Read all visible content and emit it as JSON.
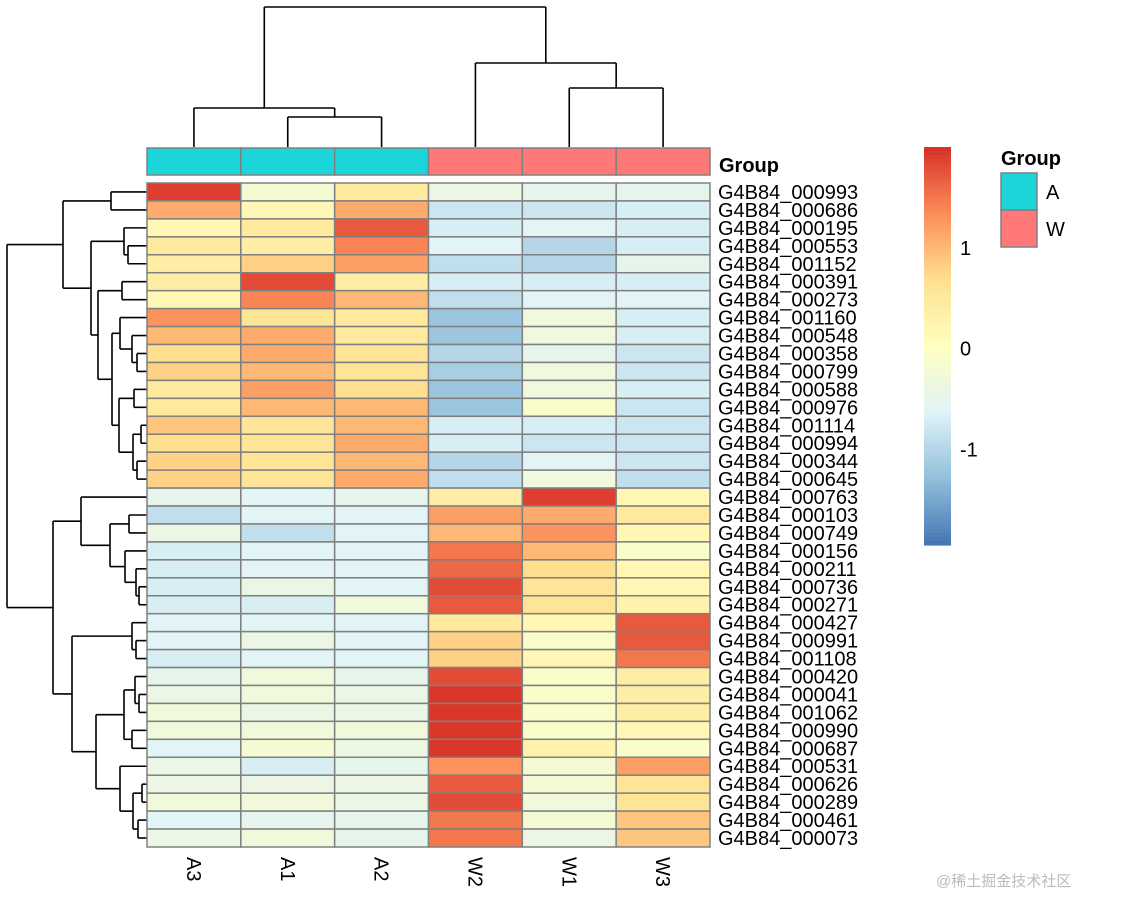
{
  "chart_data": {
    "type": "heatmap",
    "columns": [
      "A3",
      "A1",
      "A2",
      "W2",
      "W1",
      "W3"
    ],
    "column_groups": [
      "A",
      "A",
      "A",
      "W",
      "W",
      "W"
    ],
    "rows": [
      "G4B84_000993",
      "G4B84_000686",
      "G4B84_000195",
      "G4B84_000553",
      "G4B84_001152",
      "G4B84_000391",
      "G4B84_000273",
      "G4B84_001160",
      "G4B84_000548",
      "G4B84_000358",
      "G4B84_000799",
      "G4B84_000588",
      "G4B84_000976",
      "G4B84_001114",
      "G4B84_000994",
      "G4B84_000344",
      "G4B84_000645",
      "G4B84_000763",
      "G4B84_000103",
      "G4B84_000749",
      "G4B84_000156",
      "G4B84_000211",
      "G4B84_000736",
      "G4B84_000271",
      "G4B84_000427",
      "G4B84_000991",
      "G4B84_001108",
      "G4B84_000420",
      "G4B84_000041",
      "G4B84_001062",
      "G4B84_000990",
      "G4B84_000687",
      "G4B84_000531",
      "G4B84_000626",
      "G4B84_000289",
      "G4B84_000461",
      "G4B84_000073"
    ],
    "values": [
      [
        1.9,
        -0.2,
        0.5,
        -0.4,
        -0.5,
        -0.5
      ],
      [
        1.1,
        0.2,
        1.1,
        -0.8,
        -0.8,
        -0.7
      ],
      [
        0.2,
        0.5,
        1.7,
        -0.7,
        -0.6,
        -0.7
      ],
      [
        0.5,
        0.4,
        1.4,
        -0.6,
        -1.0,
        -0.7
      ],
      [
        0.4,
        0.8,
        1.2,
        -0.9,
        -1.0,
        -0.5
      ],
      [
        0.4,
        1.8,
        0.4,
        -0.7,
        -0.7,
        -0.7
      ],
      [
        0.2,
        1.4,
        1.0,
        -0.9,
        -0.6,
        -0.6
      ],
      [
        1.3,
        0.6,
        0.5,
        -1.2,
        -0.3,
        -0.7
      ],
      [
        1.0,
        1.1,
        0.5,
        -1.2,
        -0.3,
        -0.7
      ],
      [
        0.7,
        1.1,
        0.6,
        -1.0,
        -0.5,
        -0.8
      ],
      [
        0.8,
        1.0,
        0.6,
        -1.1,
        -0.3,
        -0.8
      ],
      [
        0.5,
        1.2,
        0.7,
        -1.2,
        -0.3,
        -0.7
      ],
      [
        0.5,
        1.0,
        1.0,
        -1.2,
        -0.1,
        -0.8
      ],
      [
        0.9,
        0.6,
        1.0,
        -0.7,
        -0.7,
        -0.8
      ],
      [
        0.7,
        0.6,
        1.1,
        -0.7,
        -0.8,
        -0.8
      ],
      [
        0.8,
        0.6,
        1.0,
        -1.0,
        -0.6,
        -0.8
      ],
      [
        0.8,
        0.6,
        1.1,
        -0.9,
        -0.3,
        -0.9
      ],
      [
        -0.5,
        -0.6,
        -0.5,
        0.4,
        1.9,
        0.2
      ],
      [
        -0.9,
        -0.6,
        -0.6,
        1.2,
        1.1,
        0.5
      ],
      [
        -0.4,
        -0.9,
        -0.6,
        1.0,
        1.3,
        0.2
      ],
      [
        -0.7,
        -0.6,
        -0.6,
        1.5,
        1.0,
        -0.1
      ],
      [
        -0.7,
        -0.6,
        -0.6,
        1.6,
        0.7,
        0.2
      ],
      [
        -0.7,
        -0.4,
        -0.6,
        1.8,
        0.6,
        0.2
      ],
      [
        -0.7,
        -0.7,
        -0.3,
        1.7,
        0.6,
        0.3
      ],
      [
        -0.6,
        -0.6,
        -0.6,
        0.5,
        0.2,
        1.7
      ],
      [
        -0.6,
        -0.4,
        -0.6,
        0.8,
        -0.1,
        1.7
      ],
      [
        -0.7,
        -0.6,
        -0.6,
        0.8,
        0.2,
        1.5
      ],
      [
        -0.5,
        -0.3,
        -0.5,
        1.8,
        -0.1,
        0.4
      ],
      [
        -0.4,
        -0.3,
        -0.4,
        1.95,
        -0.1,
        0.4
      ],
      [
        -0.3,
        -0.4,
        -0.4,
        1.95,
        -0.1,
        0.4
      ],
      [
        -0.3,
        -0.3,
        -0.3,
        1.95,
        -0.1,
        0.2
      ],
      [
        -0.6,
        -0.2,
        -0.4,
        1.95,
        0.3,
        -0.1
      ],
      [
        -0.4,
        -0.7,
        -0.5,
        1.3,
        -0.2,
        1.2
      ],
      [
        -0.4,
        -0.4,
        -0.4,
        1.7,
        -0.2,
        0.6
      ],
      [
        -0.3,
        -0.3,
        -0.4,
        1.8,
        -0.3,
        0.6
      ],
      [
        -0.6,
        -0.5,
        -0.5,
        1.5,
        -0.2,
        0.9
      ],
      [
        -0.4,
        -0.3,
        -0.5,
        1.5,
        -0.4,
        0.9
      ]
    ],
    "color_scale": {
      "range": [
        -1.95,
        2.0
      ],
      "colors": [
        "#4575B4",
        "#91BFDB",
        "#E0F3F8",
        "#FFFFBF",
        "#FEE090",
        "#FC8D59",
        "#D73027"
      ],
      "ticks": [
        "1",
        "0",
        "-1"
      ],
      "tick_values": [
        1,
        0,
        -1
      ]
    },
    "annotation": {
      "title": "Group",
      "legend_title": "Group",
      "levels": [
        {
          "name": "A",
          "color": "#1CD5DA"
        },
        {
          "name": "W",
          "color": "#FE7878"
        }
      ]
    },
    "cell_border_color": "#808080",
    "row_dendrogram": true,
    "column_dendrogram": true
  },
  "watermark": "@稀土掘金技术社区"
}
